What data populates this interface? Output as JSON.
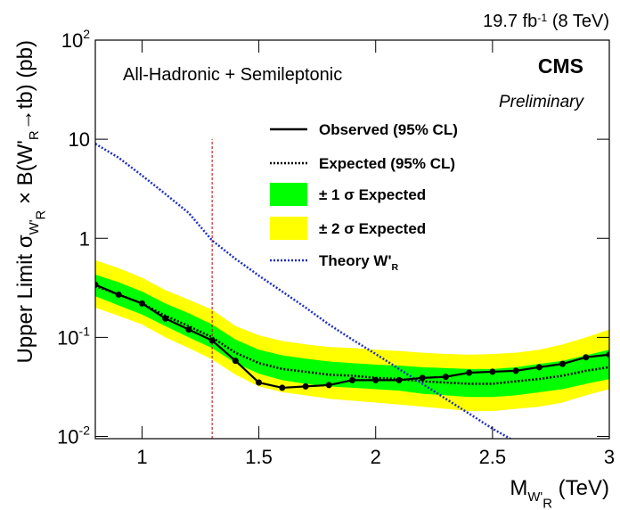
{
  "chart_data": {
    "type": "line",
    "lumi": [
      {
        "text": "19.7 fb"
      },
      {
        "text": "-1",
        "sup": 1
      },
      {
        "text": " (8 TeV)"
      }
    ],
    "annotation": "All-Hadronic + Semileptonic",
    "experiment": "CMS",
    "status": "Preliminary",
    "y_label": [
      {
        "text": "Upper Limit σ"
      },
      {
        "text": "W'",
        "sub": 1
      },
      {
        "text": "R",
        "sub": 2
      },
      {
        "text": " × B(W'"
      },
      {
        "text": "R",
        "sub": 1
      },
      {
        "text": "→tb) (pb)"
      }
    ],
    "x_label": [
      {
        "text": "M"
      },
      {
        "text": "W'",
        "sub": 1
      },
      {
        "text": "R",
        "sub": 2
      },
      {
        "text": " (TeV)"
      }
    ],
    "x": [
      0.8,
      0.9,
      1.0,
      1.1,
      1.2,
      1.3,
      1.4,
      1.5,
      1.6,
      1.7,
      1.8,
      1.9,
      2.0,
      2.1,
      2.2,
      2.3,
      2.4,
      2.5,
      2.6,
      2.7,
      2.8,
      2.9,
      3.0
    ],
    "series": [
      {
        "name": "Observed (95% CL)",
        "color": "#000000",
        "style": "solid",
        "markers": true,
        "values": [
          0.34,
          0.27,
          0.22,
          0.155,
          0.12,
          0.093,
          0.058,
          0.035,
          0.031,
          0.032,
          0.033,
          0.037,
          0.037,
          0.037,
          0.039,
          0.04,
          0.044,
          0.045,
          0.046,
          0.05,
          0.054,
          0.063,
          0.067
        ]
      },
      {
        "name": "Expected (95% CL)",
        "color": "#000000",
        "style": "dotted",
        "markers": false,
        "values": [
          0.33,
          0.27,
          0.22,
          0.165,
          0.13,
          0.1,
          0.07,
          0.055,
          0.048,
          0.045,
          0.042,
          0.041,
          0.039,
          0.038,
          0.036,
          0.035,
          0.034,
          0.034,
          0.036,
          0.038,
          0.041,
          0.046,
          0.05
        ]
      },
      {
        "name": [
          {
            "text": "Theory W'"
          },
          {
            "text": "R",
            "sub": 1
          }
        ],
        "color": "#1f2fbf",
        "style": "dotted",
        "markers": false,
        "values": [
          9,
          6.5,
          4.3,
          2.8,
          1.8,
          0.95,
          0.62,
          0.42,
          0.29,
          0.2,
          0.135,
          0.095,
          0.068,
          0.048,
          0.034,
          0.024,
          0.017,
          0.012,
          0.0088,
          0.0065,
          null,
          null,
          null
        ]
      }
    ],
    "bands": [
      {
        "name": "± 2 σ Expected",
        "color": "#ffff00",
        "lower": [
          0.2,
          0.165,
          0.135,
          0.1,
          0.078,
          0.06,
          0.042,
          0.032,
          0.028,
          0.026,
          0.024,
          0.023,
          0.022,
          0.021,
          0.02,
          0.019,
          0.018,
          0.018,
          0.019,
          0.02,
          0.022,
          0.026,
          0.03
        ],
        "upper": [
          0.6,
          0.5,
          0.4,
          0.3,
          0.24,
          0.19,
          0.13,
          0.105,
          0.092,
          0.085,
          0.08,
          0.078,
          0.075,
          0.073,
          0.07,
          0.068,
          0.067,
          0.068,
          0.07,
          0.075,
          0.085,
          0.1,
          0.12
        ]
      },
      {
        "name": "± 1 σ Expected",
        "color": "#00ff00",
        "lower": [
          0.26,
          0.21,
          0.17,
          0.13,
          0.1,
          0.078,
          0.055,
          0.043,
          0.037,
          0.034,
          0.032,
          0.031,
          0.03,
          0.029,
          0.027,
          0.026,
          0.025,
          0.025,
          0.026,
          0.028,
          0.03,
          0.034,
          0.038
        ],
        "upper": [
          0.43,
          0.36,
          0.29,
          0.22,
          0.175,
          0.135,
          0.095,
          0.075,
          0.066,
          0.061,
          0.057,
          0.055,
          0.053,
          0.052,
          0.05,
          0.049,
          0.048,
          0.048,
          0.05,
          0.054,
          0.058,
          0.066,
          0.075
        ]
      }
    ],
    "vline": {
      "x": 1.3,
      "ymax": 10,
      "color": "#c00000"
    },
    "xlim": [
      0.8,
      3.0
    ],
    "xticks": [
      1,
      1.5,
      2,
      2.5,
      3
    ],
    "ylim": [
      0.0095,
      100
    ],
    "log_y": true,
    "yticks": [
      {
        "value": 0.01,
        "label": "10",
        "sup": "-2"
      },
      {
        "value": 0.1,
        "label": "10",
        "sup": "-1"
      },
      1,
      10,
      {
        "value": 100,
        "label": "10",
        "sup": "2"
      }
    ]
  }
}
